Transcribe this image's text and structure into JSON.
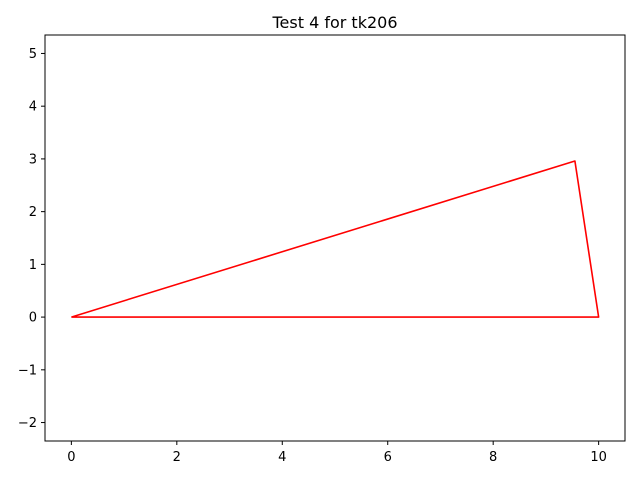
{
  "chart_data": {
    "type": "line",
    "title": "Test 4 for tk206",
    "xlabel": "",
    "ylabel": "",
    "xlim": [
      -0.5,
      10.5
    ],
    "ylim": [
      -2.35,
      5.35
    ],
    "xticks": [
      0,
      2,
      4,
      6,
      8,
      10
    ],
    "yticks": [
      -2,
      -1,
      0,
      1,
      2,
      3,
      4,
      5
    ],
    "xtick_labels": [
      "0",
      "2",
      "4",
      "6",
      "8",
      "10"
    ],
    "ytick_labels": [
      "−2",
      "−1",
      "0",
      "1",
      "2",
      "3",
      "4",
      "5"
    ],
    "grid": false,
    "series": [
      {
        "color": "#ff0000",
        "x": [
          0,
          9.55,
          10,
          0
        ],
        "y": [
          0,
          2.96,
          0,
          0
        ]
      }
    ]
  }
}
